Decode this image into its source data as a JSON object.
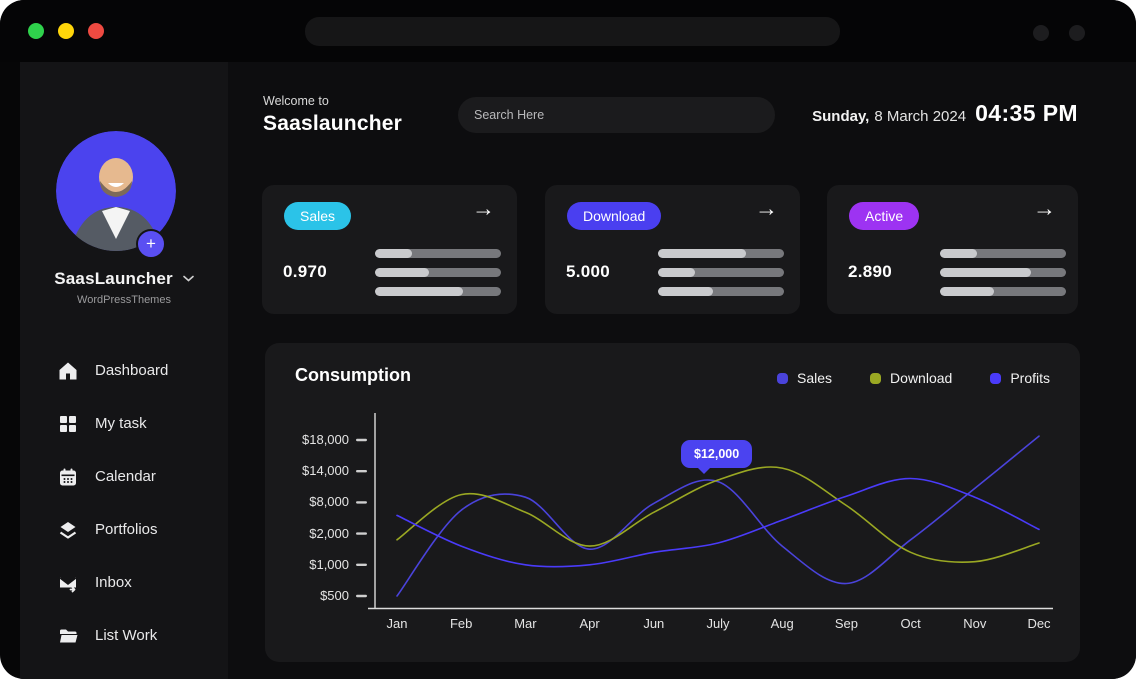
{
  "chrome": {
    "traffic_light_colors": [
      "#2fd24c",
      "#ffd60a",
      "#ee4a41"
    ]
  },
  "sidebar": {
    "profile": {
      "name": "SaasLauncher",
      "org": "WordPressThemes"
    },
    "items": [
      {
        "label": "Dashboard",
        "icon": "home"
      },
      {
        "label": "My task",
        "icon": "grid"
      },
      {
        "label": "Calendar",
        "icon": "calendar"
      },
      {
        "label": "Portfolios",
        "icon": "layers"
      },
      {
        "label": "Inbox",
        "icon": "inbox"
      },
      {
        "label": "List Work",
        "icon": "folder"
      }
    ]
  },
  "header": {
    "welcome": "Welcome to",
    "app_name": "Saaslauncher",
    "search_placeholder": "Search Here",
    "date_day": "Sunday,",
    "date_rest": "8 March 2024",
    "time": "04:35 PM"
  },
  "cards": [
    {
      "badge": "Sales",
      "badge_color": "#2bc3e8",
      "value": "0.970",
      "bars": [
        0.29,
        0.43,
        0.7
      ]
    },
    {
      "badge": "Download",
      "badge_color": "#4a3ff0",
      "value": "5.000",
      "bars": [
        0.7,
        0.29,
        0.44
      ]
    },
    {
      "badge": "Active",
      "badge_color": "#9d33f2",
      "value": "2.890",
      "bars": [
        0.29,
        0.72,
        0.43
      ]
    }
  ],
  "chart_data": {
    "type": "line",
    "title": "Consumption",
    "xlabel": "",
    "ylabel": "",
    "grid": false,
    "legend_position": "top-right",
    "x": [
      "Jan",
      "Feb",
      "Mar",
      "Apr",
      "Jun",
      "July",
      "Aug",
      "Sep",
      "Oct",
      "Nov",
      "Dec"
    ],
    "y_ticks": {
      "labels": [
        "$18,000",
        "$14,000",
        "$8,000",
        "$2,000",
        "$1,000",
        "$500"
      ],
      "values": [
        18000,
        14000,
        8000,
        2000,
        1000,
        500
      ]
    },
    "series": [
      {
        "name": "Sales",
        "color": "#4a43db",
        "values": [
          500,
          6500,
          9000,
          1500,
          7800,
          12000,
          1600,
          700,
          1800,
          10700,
          18500
        ]
      },
      {
        "name": "Download",
        "color": "#9aa823",
        "values": [
          1800,
          9500,
          6100,
          1600,
          6100,
          12300,
          14400,
          7400,
          1400,
          1100,
          1700
        ]
      },
      {
        "name": "Profits",
        "color": "#4a3bfa",
        "values": [
          5500,
          1600,
          1000,
          1000,
          1400,
          1700,
          4600,
          9200,
          12600,
          9000,
          2800
        ]
      }
    ],
    "tooltip": {
      "label": "$12,000",
      "series": "Sales",
      "x": "July"
    }
  }
}
